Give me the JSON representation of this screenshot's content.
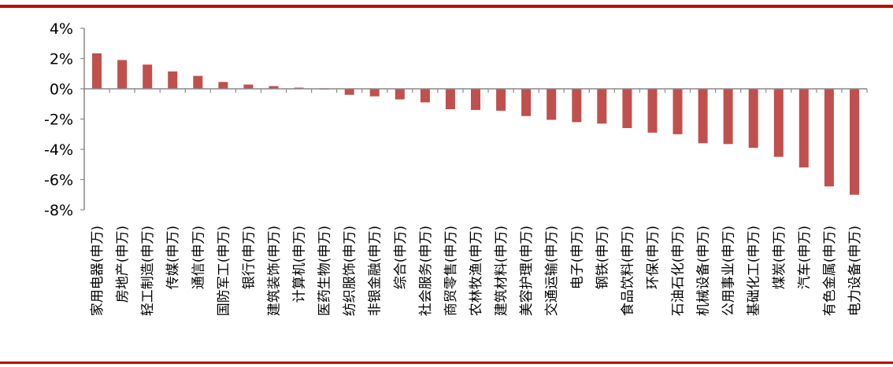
{
  "page": {
    "accent_color": "#c00000"
  },
  "chart_data": {
    "type": "bar",
    "bar_color": "#c0504d",
    "axis_color": "#898989",
    "ylim": [
      -8,
      4
    ],
    "yticks": [
      4,
      2,
      0,
      -2,
      -4,
      -6,
      -8
    ],
    "ytick_labels": [
      "4%",
      "2%",
      "0%",
      "-2%",
      "-4%",
      "-6%",
      "-8%"
    ],
    "categories": [
      "家用电器(申万)",
      "房地产(申万)",
      "轻工制造(申万)",
      "传媒(申万)",
      "通信(申万)",
      "国防军工(申万)",
      "银行(申万)",
      "建筑装饰(申万)",
      "计算机(申万)",
      "医药生物(申万)",
      "纺织服饰(申万)",
      "非银金融(申万)",
      "综合(申万)",
      "社会服务(申万)",
      "商贸零售(申万)",
      "农林牧渔(申万)",
      "建筑材料(申万)",
      "美容护理(申万)",
      "交通运输(申万)",
      "电子(申万)",
      "钢铁(申万)",
      "食品饮料(申万)",
      "环保(申万)",
      "石油石化(申万)",
      "机械设备(申万)",
      "公用事业(申万)",
      "基础化工(申万)",
      "煤炭(申万)",
      "汽车(申万)",
      "有色金属(申万)",
      "电力设备(申万)"
    ],
    "values": [
      2.35,
      1.9,
      1.6,
      1.15,
      0.85,
      0.45,
      0.28,
      0.18,
      0.08,
      -0.05,
      -0.4,
      -0.5,
      -0.7,
      -0.9,
      -1.35,
      -1.4,
      -1.45,
      -1.8,
      -2.05,
      -2.2,
      -2.3,
      -2.6,
      -2.9,
      -3.0,
      -3.6,
      -3.65,
      -3.9,
      -4.5,
      -5.2,
      -6.45,
      -7.0
    ],
    "grid": false,
    "legend": "none"
  }
}
